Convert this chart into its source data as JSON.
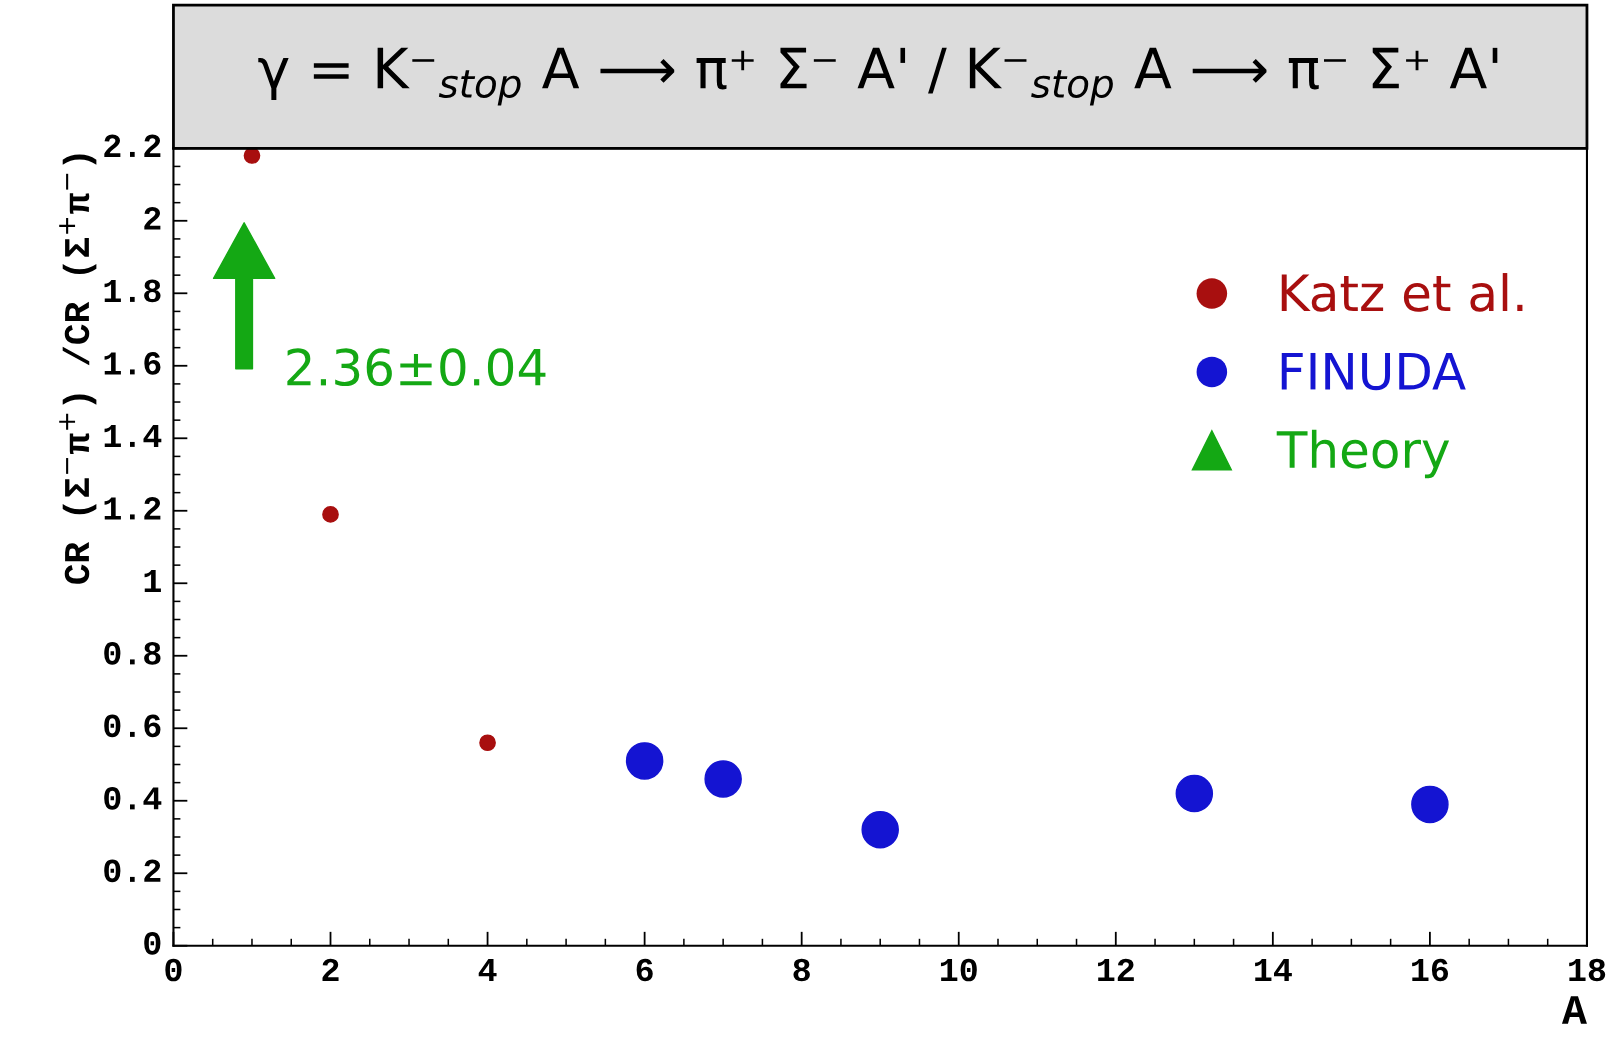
{
  "chart_data": {
    "type": "scatter",
    "title": "γ = K⁻$_{stop}$ A ⟶ π⁺ Σ⁻ A' / K⁻$_{stop}$ A ⟶ π⁻ Σ⁺ A'",
    "xlabel": "A",
    "ylabel": "CR (Σ$^{−}$π$^{+}$) /CR (Σ$^{+}$π$^{−}$)",
    "series": [
      {
        "name": "Katz et al.",
        "color": "#a80f0f",
        "x": [
          1,
          2,
          4
        ],
        "values": [
          2.18,
          1.19,
          0.56
        ]
      },
      {
        "name": "FINUDA",
        "color": "#1414d2",
        "x": [
          6,
          7,
          9,
          13,
          16
        ],
        "values": [
          0.51,
          0.46,
          0.32,
          0.42,
          0.39
        ]
      },
      {
        "name": "Theory",
        "color": "#14a814",
        "type": "other"
      }
    ],
    "annotations": [
      "2.36±0.04"
    ],
    "xlim": [
      0,
      18
    ],
    "xticks": [
      0,
      2,
      4,
      6,
      8,
      10,
      12,
      14,
      16,
      18
    ],
    "ylim": [
      0,
      2.2
    ],
    "yticks": [
      0,
      0.2,
      0.4,
      0.6,
      0.8,
      1,
      1.2,
      1.4,
      1.6,
      1.8,
      2,
      2.2
    ],
    "marker": "circle",
    "legend": "top right",
    "grid": false
  }
}
